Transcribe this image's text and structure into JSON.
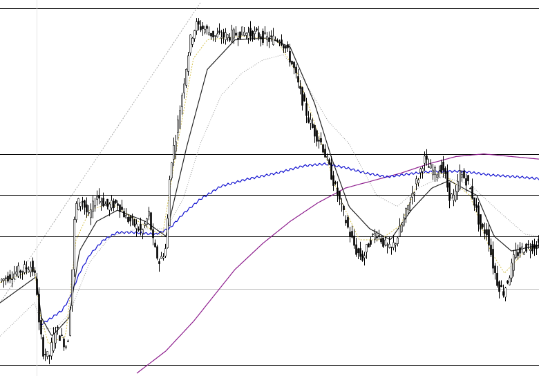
{
  "chart_data": {
    "type": "candlestick",
    "title": "",
    "xlabel": "",
    "ylabel": "",
    "ylim": [
      0,
      1000
    ],
    "grid": false,
    "colors": {
      "candle": "#000000",
      "background": "#ffffff",
      "grid_line": "#000000",
      "grid_light": "#c0c0c0",
      "ma_fast": "#d4c04a",
      "ma_mid": "#222222",
      "ma_slow": "#999999",
      "ma_blue": "#1010d0",
      "ma_purple": "#8e1e8e",
      "trend_line": "#aaaaaa"
    },
    "horizontal_levels": [
      {
        "value": 985.2,
        "style": "solid"
      },
      {
        "value": 592.3,
        "style": "solid"
      },
      {
        "value": 481.6,
        "style": "solid"
      },
      {
        "value": 369.1,
        "style": "solid"
      },
      {
        "value": 228.0,
        "style": "light"
      },
      {
        "value": 22.1,
        "style": "solid"
      }
    ],
    "price_anchors": [
      [
        0,
        250
      ],
      [
        20,
        270
      ],
      [
        45,
        290
      ],
      [
        52,
        250
      ],
      [
        56,
        130
      ],
      [
        62,
        60
      ],
      [
        70,
        40
      ],
      [
        80,
        120
      ],
      [
        90,
        90
      ],
      [
        97,
        70
      ],
      [
        103,
        240
      ],
      [
        108,
        450
      ],
      [
        118,
        470
      ],
      [
        128,
        420
      ],
      [
        140,
        480
      ],
      [
        155,
        450
      ],
      [
        170,
        460
      ],
      [
        182,
        420
      ],
      [
        195,
        400
      ],
      [
        205,
        380
      ],
      [
        215,
        430
      ],
      [
        222,
        340
      ],
      [
        230,
        300
      ],
      [
        240,
        340
      ],
      [
        246,
        560
      ],
      [
        255,
        650
      ],
      [
        265,
        780
      ],
      [
        275,
        900
      ],
      [
        283,
        940
      ],
      [
        295,
        930
      ],
      [
        310,
        910
      ],
      [
        330,
        910
      ],
      [
        350,
        920
      ],
      [
        370,
        915
      ],
      [
        390,
        900
      ],
      [
        405,
        905
      ],
      [
        415,
        870
      ],
      [
        425,
        820
      ],
      [
        435,
        750
      ],
      [
        445,
        690
      ],
      [
        455,
        650
      ],
      [
        465,
        620
      ],
      [
        475,
        560
      ],
      [
        485,
        500
      ],
      [
        495,
        440
      ],
      [
        505,
        380
      ],
      [
        515,
        330
      ],
      [
        525,
        310
      ],
      [
        535,
        360
      ],
      [
        545,
        380
      ],
      [
        555,
        350
      ],
      [
        565,
        330
      ],
      [
        575,
        370
      ],
      [
        585,
        420
      ],
      [
        595,
        480
      ],
      [
        605,
        530
      ],
      [
        613,
        580
      ],
      [
        620,
        555
      ],
      [
        630,
        540
      ],
      [
        640,
        560
      ],
      [
        650,
        480
      ],
      [
        658,
        470
      ],
      [
        665,
        540
      ],
      [
        675,
        520
      ],
      [
        685,
        470
      ],
      [
        695,
        390
      ],
      [
        705,
        380
      ],
      [
        712,
        300
      ],
      [
        720,
        240
      ],
      [
        728,
        220
      ],
      [
        736,
        260
      ],
      [
        745,
        320
      ],
      [
        760,
        340
      ],
      [
        780,
        350
      ]
    ],
    "series_anchors": {
      "ma_fast": [
        [
          0,
          245
        ],
        [
          50,
          280
        ],
        [
          58,
          160
        ],
        [
          70,
          80
        ],
        [
          95,
          100
        ],
        [
          110,
          360
        ],
        [
          130,
          440
        ],
        [
          160,
          460
        ],
        [
          200,
          410
        ],
        [
          235,
          370
        ],
        [
          255,
          600
        ],
        [
          280,
          850
        ],
        [
          300,
          900
        ],
        [
          350,
          910
        ],
        [
          400,
          900
        ],
        [
          430,
          810
        ],
        [
          460,
          650
        ],
        [
          490,
          480
        ],
        [
          520,
          360
        ],
        [
          550,
          360
        ],
        [
          580,
          400
        ],
        [
          610,
          540
        ],
        [
          640,
          540
        ],
        [
          680,
          480
        ],
        [
          710,
          330
        ],
        [
          730,
          270
        ],
        [
          760,
          330
        ],
        [
          780,
          345
        ]
      ],
      "ma_mid": [
        [
          0,
          190
        ],
        [
          52,
          260
        ],
        [
          60,
          150
        ],
        [
          75,
          100
        ],
        [
          100,
          150
        ],
        [
          115,
          330
        ],
        [
          140,
          410
        ],
        [
          170,
          440
        ],
        [
          210,
          410
        ],
        [
          240,
          370
        ],
        [
          270,
          610
        ],
        [
          300,
          820
        ],
        [
          340,
          900
        ],
        [
          390,
          905
        ],
        [
          420,
          880
        ],
        [
          455,
          730
        ],
        [
          480,
          580
        ],
        [
          505,
          450
        ],
        [
          535,
          390
        ],
        [
          565,
          360
        ],
        [
          595,
          440
        ],
        [
          625,
          500
        ],
        [
          650,
          520
        ],
        [
          690,
          480
        ],
        [
          715,
          370
        ],
        [
          740,
          330
        ],
        [
          765,
          340
        ],
        [
          780,
          345
        ]
      ],
      "ma_slow": [
        [
          0,
          100
        ],
        [
          50,
          190
        ],
        [
          62,
          120
        ],
        [
          80,
          120
        ],
        [
          100,
          160
        ],
        [
          130,
          300
        ],
        [
          160,
          370
        ],
        [
          200,
          390
        ],
        [
          240,
          390
        ],
        [
          265,
          470
        ],
        [
          290,
          620
        ],
        [
          320,
          750
        ],
        [
          350,
          810
        ],
        [
          380,
          845
        ],
        [
          410,
          860
        ],
        [
          440,
          790
        ],
        [
          475,
          680
        ],
        [
          505,
          620
        ],
        [
          525,
          550
        ],
        [
          545,
          480
        ],
        [
          575,
          450
        ],
        [
          605,
          500
        ],
        [
          640,
          530
        ],
        [
          680,
          510
        ],
        [
          720,
          440
        ],
        [
          760,
          375
        ],
        [
          780,
          370
        ]
      ],
      "ma_blue": [
        [
          58,
          130
        ],
        [
          75,
          150
        ],
        [
          90,
          170
        ],
        [
          100,
          200
        ],
        [
          115,
          270
        ],
        [
          130,
          320
        ],
        [
          150,
          360
        ],
        [
          170,
          380
        ],
        [
          195,
          380
        ],
        [
          225,
          375
        ],
        [
          245,
          390
        ],
        [
          265,
          430
        ],
        [
          290,
          470
        ],
        [
          320,
          505
        ],
        [
          360,
          525
        ],
        [
          400,
          540
        ],
        [
          440,
          560
        ],
        [
          470,
          565
        ],
        [
          500,
          555
        ],
        [
          530,
          540
        ],
        [
          560,
          530
        ],
        [
          600,
          540
        ],
        [
          630,
          545
        ],
        [
          670,
          545
        ],
        [
          710,
          535
        ],
        [
          750,
          530
        ],
        [
          780,
          525
        ]
      ],
      "ma_purple": [
        [
          198,
          0
        ],
        [
          240,
          60
        ],
        [
          280,
          140
        ],
        [
          310,
          210
        ],
        [
          340,
          280
        ],
        [
          380,
          350
        ],
        [
          420,
          410
        ],
        [
          460,
          460
        ],
        [
          500,
          500
        ],
        [
          540,
          520
        ],
        [
          580,
          540
        ],
        [
          620,
          565
        ],
        [
          660,
          585
        ],
        [
          700,
          592
        ],
        [
          740,
          585
        ],
        [
          780,
          578
        ]
      ]
    },
    "trend_line": {
      "from": [
        0,
        190
      ],
      "to": [
        290,
        1000
      ]
    }
  }
}
